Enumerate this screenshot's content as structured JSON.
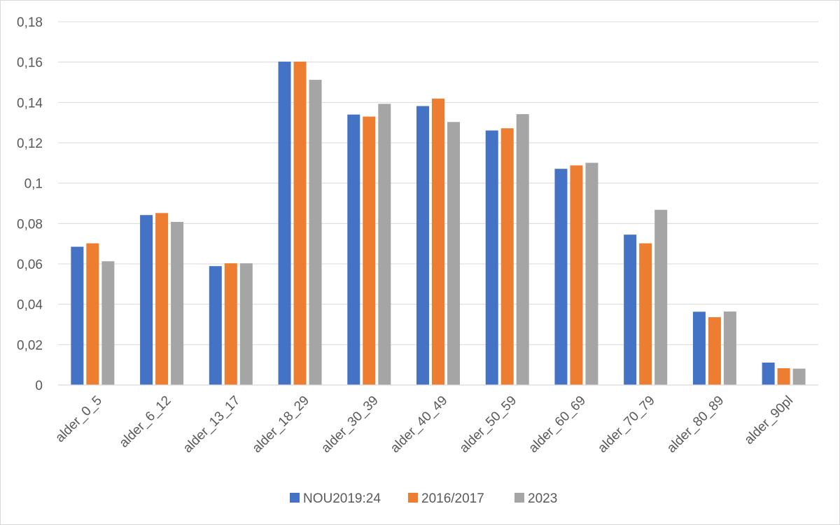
{
  "chart_data": {
    "type": "bar",
    "categories": [
      "alder_0_5",
      "alder_6_12",
      "alder_13_17",
      "alder_18_29",
      "alder_30_39",
      "alder_40_49",
      "alder_50_59",
      "alder_60_69",
      "alder_70_79",
      "alder_80_89",
      "alder_90pl"
    ],
    "series": [
      {
        "name": "NOU2019:24",
        "color": "#4472c4",
        "values": [
          0.0685,
          0.0842,
          0.0589,
          0.1602,
          0.134,
          0.1382,
          0.1261,
          0.1071,
          0.0745,
          0.0363,
          0.0111
        ]
      },
      {
        "name": "2016/2017",
        "color": "#ed7d31",
        "values": [
          0.0702,
          0.0852,
          0.0603,
          0.1602,
          0.133,
          0.1419,
          0.1272,
          0.1088,
          0.0702,
          0.0336,
          0.0083
        ]
      },
      {
        "name": "2023",
        "color": "#a5a5a5",
        "values": [
          0.0613,
          0.0808,
          0.0603,
          0.1512,
          0.1393,
          0.1303,
          0.1342,
          0.1101,
          0.0868,
          0.0364,
          0.0081
        ]
      }
    ],
    "yticks": [
      "0",
      "0,02",
      "0,04",
      "0,06",
      "0,08",
      "0,1",
      "0,12",
      "0,14",
      "0,16",
      "0,18"
    ],
    "ylim": [
      0,
      0.18
    ],
    "title": "",
    "xlabel": "",
    "ylabel": "",
    "grid": true,
    "legend_position": "bottom"
  }
}
